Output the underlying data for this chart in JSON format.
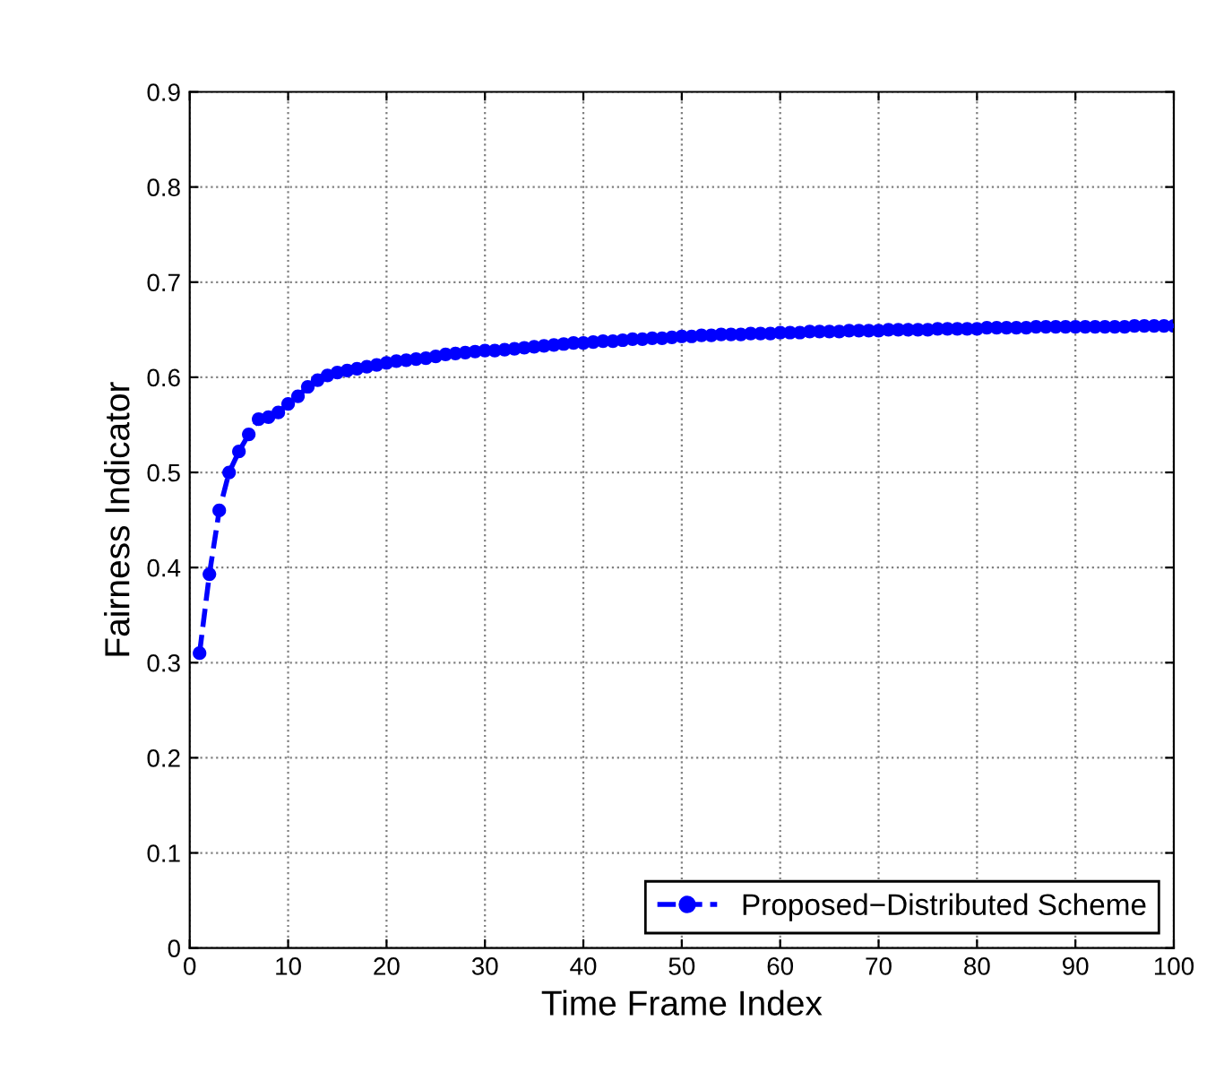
{
  "chart_data": {
    "type": "line",
    "xlabel": "Time Frame Index",
    "ylabel": "Fairness Indicator",
    "x": [
      1,
      2,
      3,
      4,
      5,
      6,
      7,
      8,
      9,
      10,
      11,
      12,
      13,
      14,
      15,
      16,
      17,
      18,
      19,
      20,
      21,
      22,
      23,
      24,
      25,
      26,
      27,
      28,
      29,
      30,
      31,
      32,
      33,
      34,
      35,
      36,
      37,
      38,
      39,
      40,
      41,
      42,
      43,
      44,
      45,
      46,
      47,
      48,
      49,
      50,
      51,
      52,
      53,
      54,
      55,
      56,
      57,
      58,
      59,
      60,
      61,
      62,
      63,
      64,
      65,
      66,
      67,
      68,
      69,
      70,
      71,
      72,
      73,
      74,
      75,
      76,
      77,
      78,
      79,
      80,
      81,
      82,
      83,
      84,
      85,
      86,
      87,
      88,
      89,
      90,
      91,
      92,
      93,
      94,
      95,
      96,
      97,
      98,
      99,
      100
    ],
    "series": [
      {
        "name": "Proposed−Distributed Scheme",
        "color": "#0000ff",
        "values": [
          0.31,
          0.393,
          0.46,
          0.5,
          0.522,
          0.54,
          0.556,
          0.558,
          0.563,
          0.572,
          0.58,
          0.59,
          0.597,
          0.602,
          0.605,
          0.607,
          0.609,
          0.611,
          0.613,
          0.615,
          0.617,
          0.618,
          0.619,
          0.62,
          0.622,
          0.624,
          0.625,
          0.626,
          0.627,
          0.628,
          0.628,
          0.629,
          0.63,
          0.631,
          0.632,
          0.633,
          0.634,
          0.635,
          0.636,
          0.636,
          0.637,
          0.638,
          0.638,
          0.639,
          0.64,
          0.64,
          0.641,
          0.641,
          0.642,
          0.643,
          0.643,
          0.644,
          0.644,
          0.645,
          0.645,
          0.645,
          0.646,
          0.646,
          0.646,
          0.647,
          0.647,
          0.647,
          0.648,
          0.648,
          0.648,
          0.648,
          0.649,
          0.649,
          0.649,
          0.649,
          0.65,
          0.65,
          0.65,
          0.65,
          0.65,
          0.651,
          0.651,
          0.651,
          0.651,
          0.651,
          0.652,
          0.652,
          0.652,
          0.652,
          0.652,
          0.653,
          0.653,
          0.653,
          0.653,
          0.653,
          0.653,
          0.653,
          0.653,
          0.653,
          0.653,
          0.654,
          0.654,
          0.654,
          0.654,
          0.654
        ]
      }
    ],
    "xlim": [
      0,
      100
    ],
    "xticks": [
      0,
      10,
      20,
      30,
      40,
      50,
      60,
      70,
      80,
      90,
      100
    ],
    "ylim": [
      0,
      0.9
    ],
    "yticks": [
      0,
      0.1,
      0.2,
      0.3,
      0.4,
      0.5,
      0.6,
      0.7,
      0.8,
      0.9
    ],
    "grid": true,
    "legend": "bottom right",
    "marker": "circle",
    "line_style": "dashed"
  }
}
